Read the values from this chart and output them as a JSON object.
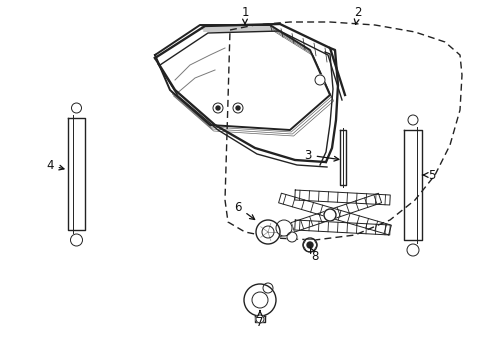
{
  "bg_color": "#ffffff",
  "line_color": "#222222",
  "label_color": "#111111",
  "figsize": [
    4.89,
    3.6
  ],
  "dpi": 100
}
